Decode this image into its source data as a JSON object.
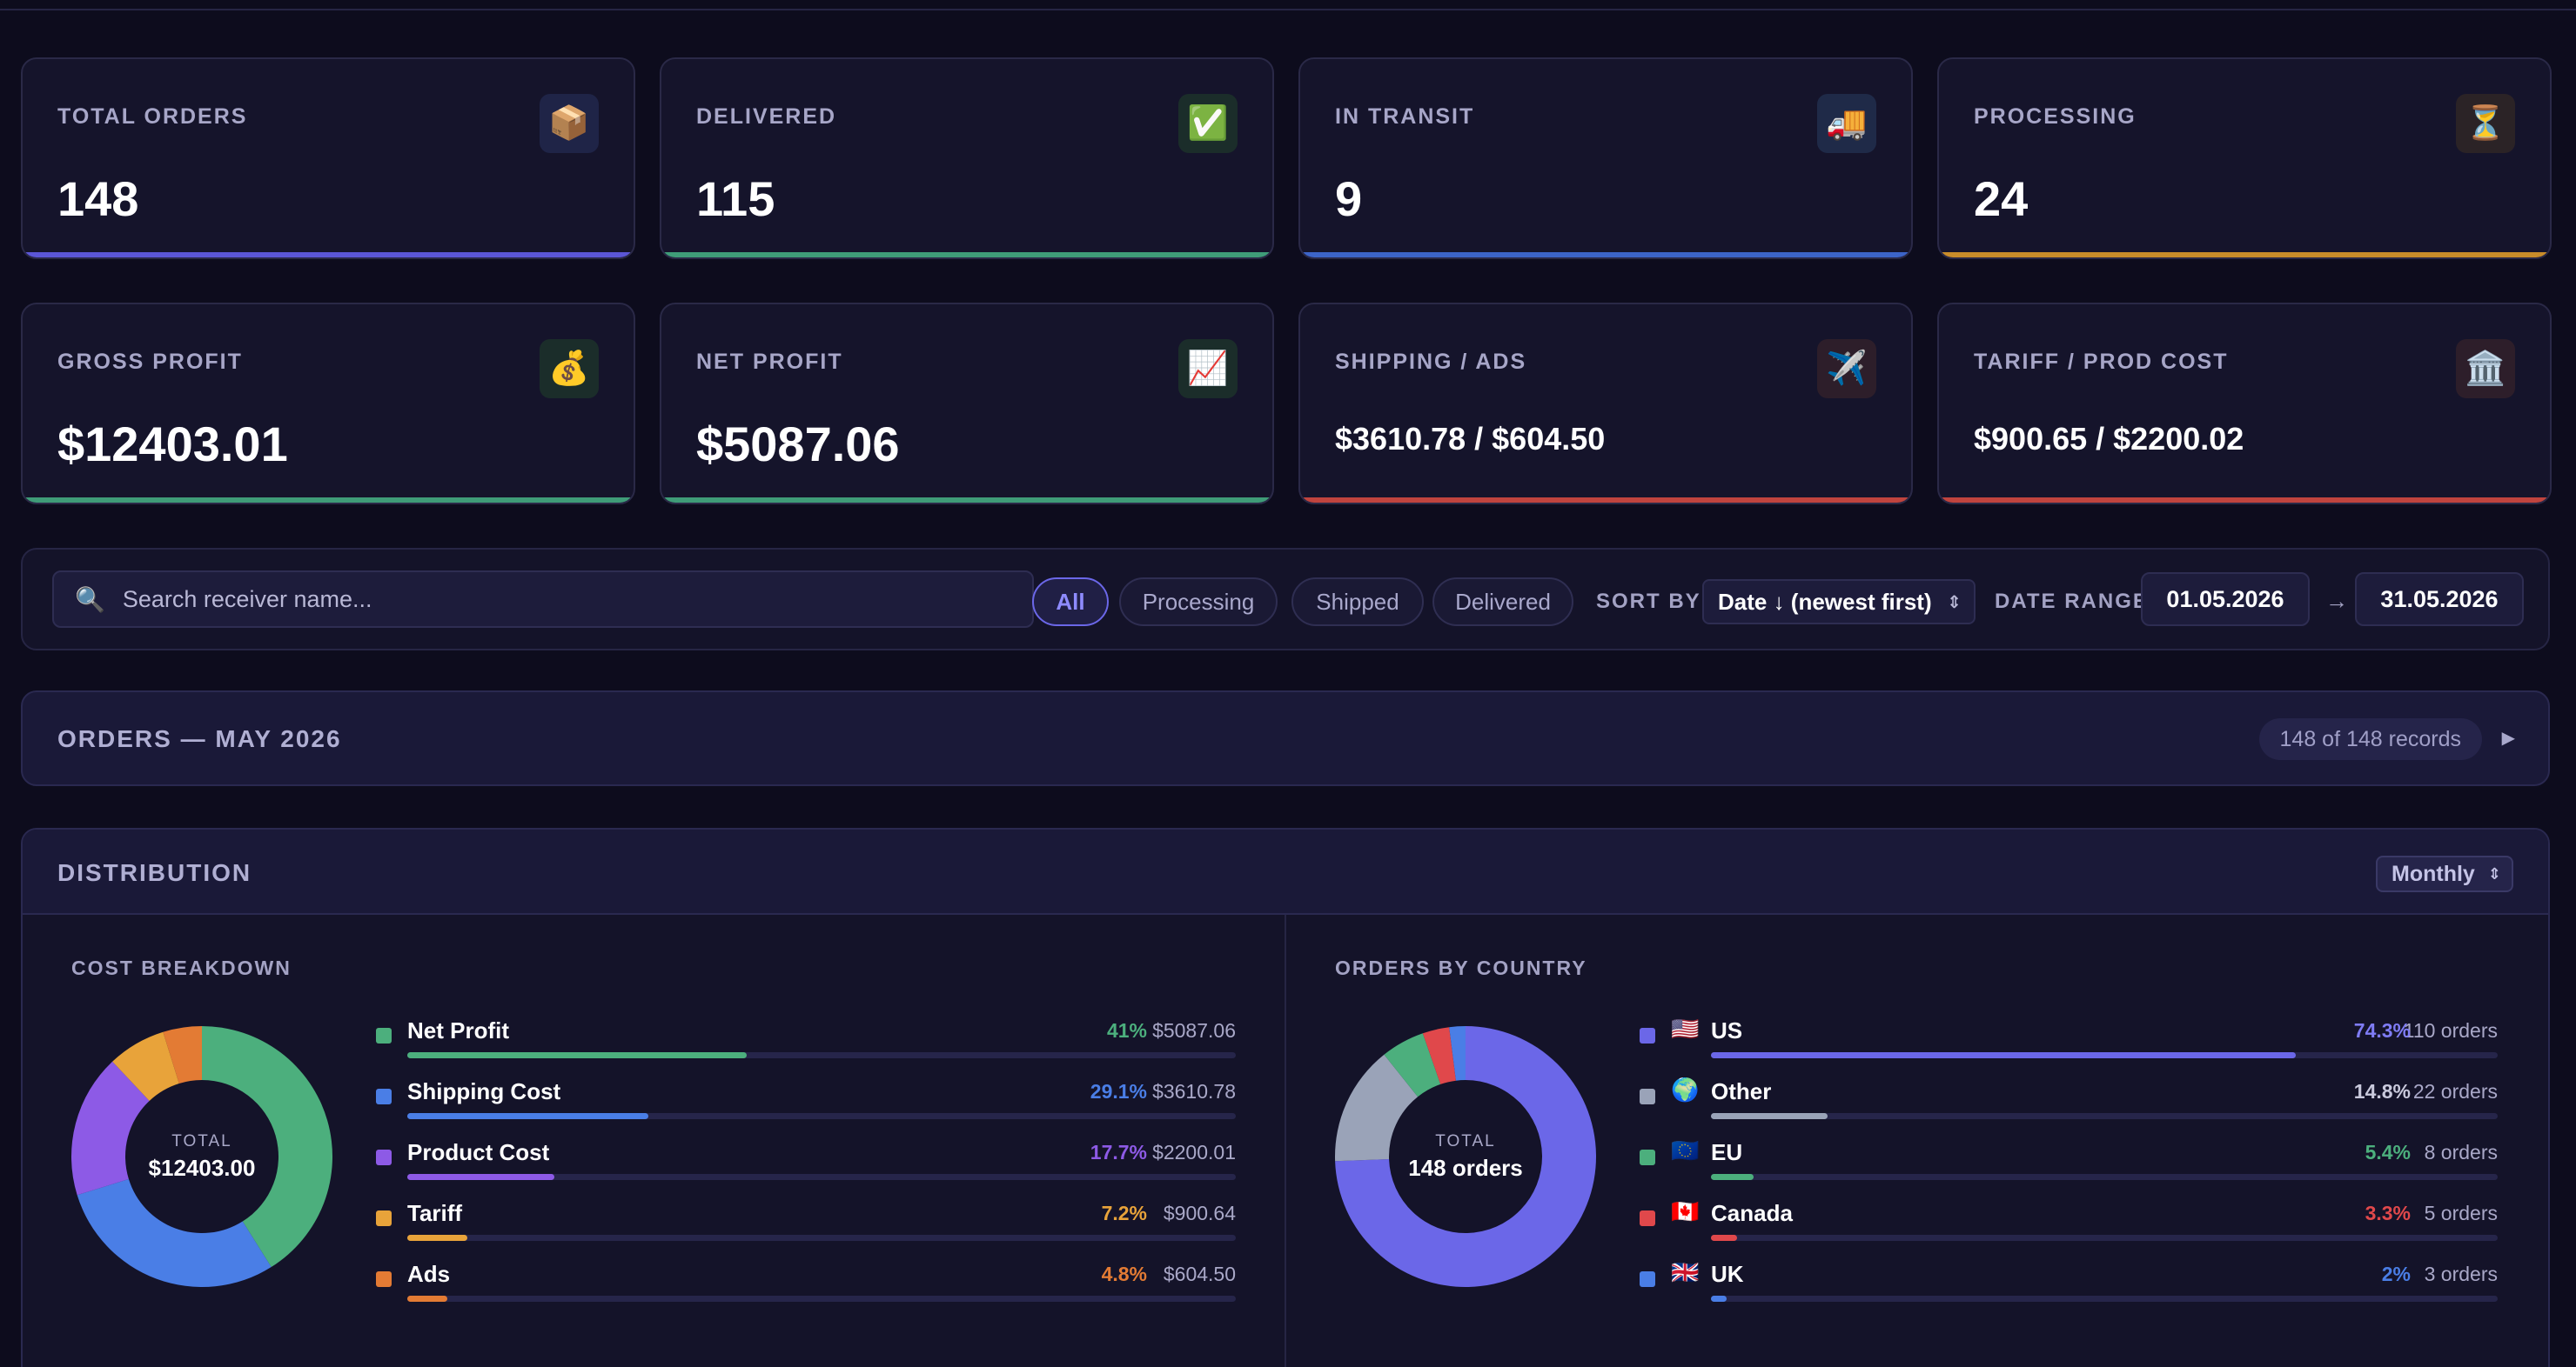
{
  "stats": [
    {
      "label": "TOTAL ORDERS",
      "value": "148",
      "icon": "package-icon",
      "glyph": "📦",
      "icon_bg": "#1f2447",
      "accent": "#5b56d6"
    },
    {
      "label": "DELIVERED",
      "value": "115",
      "icon": "check-icon",
      "glyph": "✅",
      "icon_bg": "#1b2d2a",
      "accent": "#3f9c78"
    },
    {
      "label": "IN TRANSIT",
      "value": "9",
      "icon": "truck-icon",
      "glyph": "🚚",
      "icon_bg": "#1f2a48",
      "accent": "#3c64c8"
    },
    {
      "label": "PROCESSING",
      "value": "24",
      "icon": "hourglass-icon",
      "glyph": "⏳",
      "icon_bg": "#2b2326",
      "accent": "#c88c2a"
    },
    {
      "label": "GROSS PROFIT",
      "value": "$12403.01",
      "icon": "money-bag-icon",
      "glyph": "💰",
      "icon_bg": "#1b2d2a",
      "accent": "#3f9c78"
    },
    {
      "label": "NET PROFIT",
      "value": "$5087.06",
      "icon": "chart-up-icon",
      "glyph": "📈",
      "icon_bg": "#1b2d2a",
      "accent": "#3f9c78"
    },
    {
      "label": "SHIPPING / ADS",
      "value": "$3610.78 / $604.50",
      "icon": "airplane-icon",
      "glyph": "✈️",
      "icon_bg": "#2d1e2a",
      "accent": "#c0443e"
    },
    {
      "label": "TARIFF / PROD COST",
      "value": "$900.65 / $2200.02",
      "icon": "bank-icon",
      "glyph": "🏛️",
      "icon_bg": "#2d1e2a",
      "accent": "#c0443e"
    }
  ],
  "filters": {
    "search_placeholder": "Search receiver name...",
    "search_value": "",
    "status_pills": [
      "All",
      "Processing",
      "Shipped",
      "Delivered"
    ],
    "active_pill": "All",
    "sort_label": "SORT BY",
    "sort_value": "Date ↓ (newest first)",
    "date_range_label": "DATE RANGE",
    "date_from": "01.05.2026",
    "date_arrow": "→",
    "date_to": "31.05.2026"
  },
  "orders": {
    "title": "ORDERS — MAY 2026",
    "records": "148 of 148 records",
    "expand_glyph": "▶"
  },
  "distribution": {
    "title": "DISTRIBUTION",
    "period": "Monthly",
    "cost": {
      "title": "COST BREAKDOWN",
      "center_label": "TOTAL",
      "center_value": "$12403.00"
    },
    "country": {
      "title": "ORDERS BY COUNTRY",
      "center_label": "TOTAL",
      "center_value": "148 orders"
    }
  },
  "chart_data": [
    {
      "type": "pie",
      "title": "COST BREAKDOWN",
      "total": "$12403.00",
      "categories": [
        "Net Profit",
        "Shipping Cost",
        "Product Cost",
        "Tariff",
        "Ads"
      ],
      "values": [
        41,
        29.1,
        17.7,
        7.2,
        4.8
      ],
      "percent_labels": [
        "41%",
        "29.1%",
        "17.7%",
        "7.2%",
        "4.8%"
      ],
      "amount_labels": [
        "$5087.06",
        "$3610.78",
        "$2200.01",
        "$900.64",
        "$604.50"
      ],
      "colors": [
        "#4caf7d",
        "#4a7ee6",
        "#8d5ae6",
        "#e8a33a",
        "#e37b34"
      ]
    },
    {
      "type": "pie",
      "title": "ORDERS BY COUNTRY",
      "total": "148 orders",
      "categories": [
        "US",
        "Other",
        "EU",
        "Canada",
        "UK"
      ],
      "flags": [
        "🇺🇸",
        "🌍",
        "🇪🇺",
        "🇨🇦",
        "🇬🇧"
      ],
      "values": [
        74.3,
        14.8,
        5.4,
        3.3,
        2
      ],
      "percent_labels": [
        "74.3%",
        "14.8%",
        "5.4%",
        "3.3%",
        "2%"
      ],
      "amount_labels": [
        "110 orders",
        "22 orders",
        "8 orders",
        "5 orders",
        "3 orders"
      ],
      "colors": [
        "#6b67e8",
        "#9aa3b8",
        "#4caf7d",
        "#e0484b",
        "#4a7ee6"
      ],
      "pct_colors": [
        "#7f7cf5",
        "#c9c9dc",
        "#4caf7d",
        "#e0484b",
        "#4a7ee6"
      ]
    }
  ]
}
